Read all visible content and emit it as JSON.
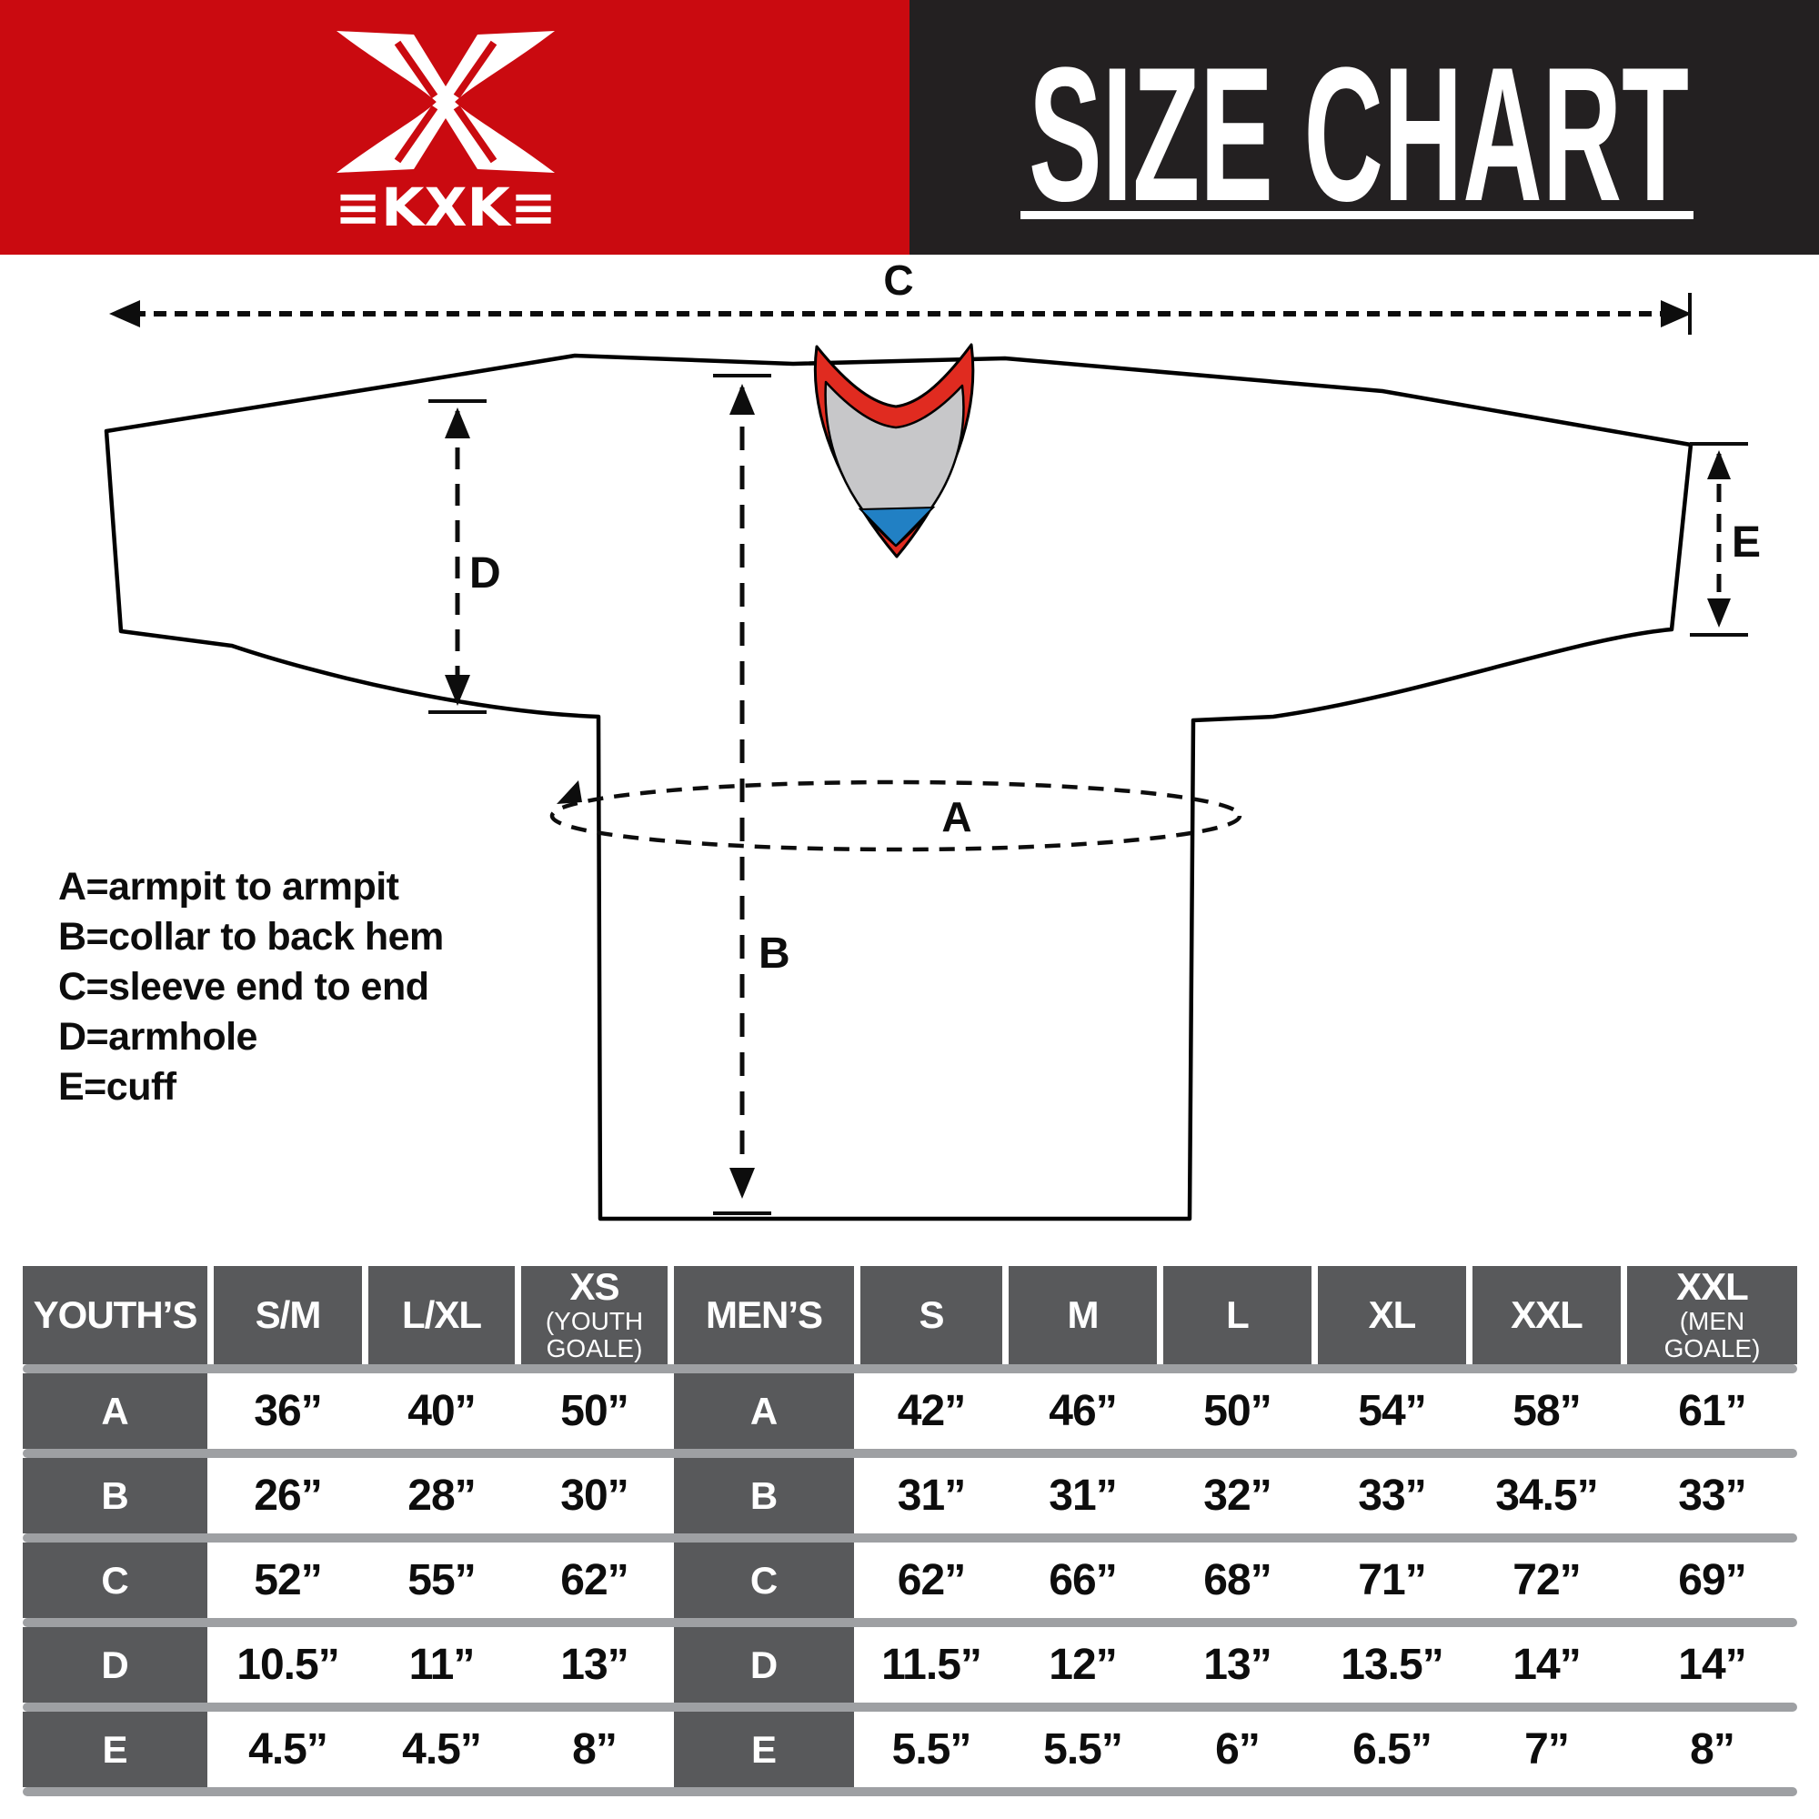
{
  "header": {
    "brand": "≡KXK≡",
    "title": "SIZE CHART",
    "colors": {
      "banner_red": "#ca0a10",
      "banner_black": "#232021"
    }
  },
  "diagram": {
    "labels": {
      "a": "A",
      "b": "B",
      "c": "C",
      "d": "D",
      "e": "E"
    },
    "legend": [
      "A=armpit to armpit",
      "B=collar to back hem",
      "C=sleeve end to end",
      "D=armhole",
      "E=cuff"
    ],
    "colors": {
      "collar_red": "#e02b20",
      "collar_gray": "#c7c7c9",
      "collar_blue": "#2180c4",
      "outline": "#000000"
    }
  },
  "size_table": {
    "row_labels": [
      "A",
      "B",
      "C",
      "D",
      "E"
    ],
    "youth": {
      "label": "YOUTH’S",
      "columns": [
        {
          "label": "S/M"
        },
        {
          "label": "L/XL"
        },
        {
          "label": "XS",
          "sub": "(YOUTH GOALE)"
        }
      ],
      "rows": [
        [
          "36”",
          "40”",
          "50”"
        ],
        [
          "26”",
          "28”",
          "30”"
        ],
        [
          "52”",
          "55”",
          "62”"
        ],
        [
          "10.5”",
          "11”",
          "13”"
        ],
        [
          "4.5”",
          "4.5”",
          "8”"
        ]
      ]
    },
    "men": {
      "label": "MEN’S",
      "columns": [
        {
          "label": "S"
        },
        {
          "label": "M"
        },
        {
          "label": "L"
        },
        {
          "label": "XL"
        },
        {
          "label": "XXL"
        },
        {
          "label": "XXL",
          "sub": "(MEN GOALE)"
        }
      ],
      "rows": [
        [
          "42”",
          "46”",
          "50”",
          "54”",
          "58”",
          "61”"
        ],
        [
          "31”",
          "31”",
          "32”",
          "33”",
          "34.5”",
          "33”"
        ],
        [
          "62”",
          "66”",
          "68”",
          "71”",
          "72”",
          "69”"
        ],
        [
          "11.5”",
          "12”",
          "13”",
          "13.5”",
          "14”",
          "14”"
        ],
        [
          "5.5”",
          "5.5”",
          "6”",
          "6.5”",
          "7”",
          "8”"
        ]
      ]
    }
  }
}
